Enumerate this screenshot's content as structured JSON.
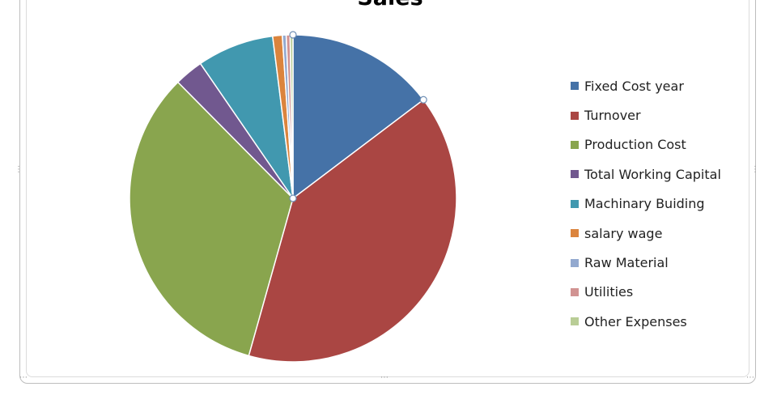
{
  "chart_data": {
    "type": "pie",
    "title": "Sales",
    "categories": [
      "Fixed Cost year",
      "Turnover",
      "Production Cost",
      "Total Working Capital",
      "Machinary Buiding",
      "salary wage",
      "Raw Material",
      "Utilities",
      "Other Expenses"
    ],
    "values": [
      15.5,
      41.8,
      35.0,
      3.0,
      8.0,
      1.0,
      0.4,
      0.4,
      0.3
    ],
    "colors": [
      "#4572A7",
      "#AA4643",
      "#89A54E",
      "#71588F",
      "#4198AF",
      "#DB843D",
      "#93A9CF",
      "#D19392",
      "#B9CD96"
    ],
    "legend_position": "right",
    "start_angle_deg": 0,
    "direction": "clockwise"
  }
}
